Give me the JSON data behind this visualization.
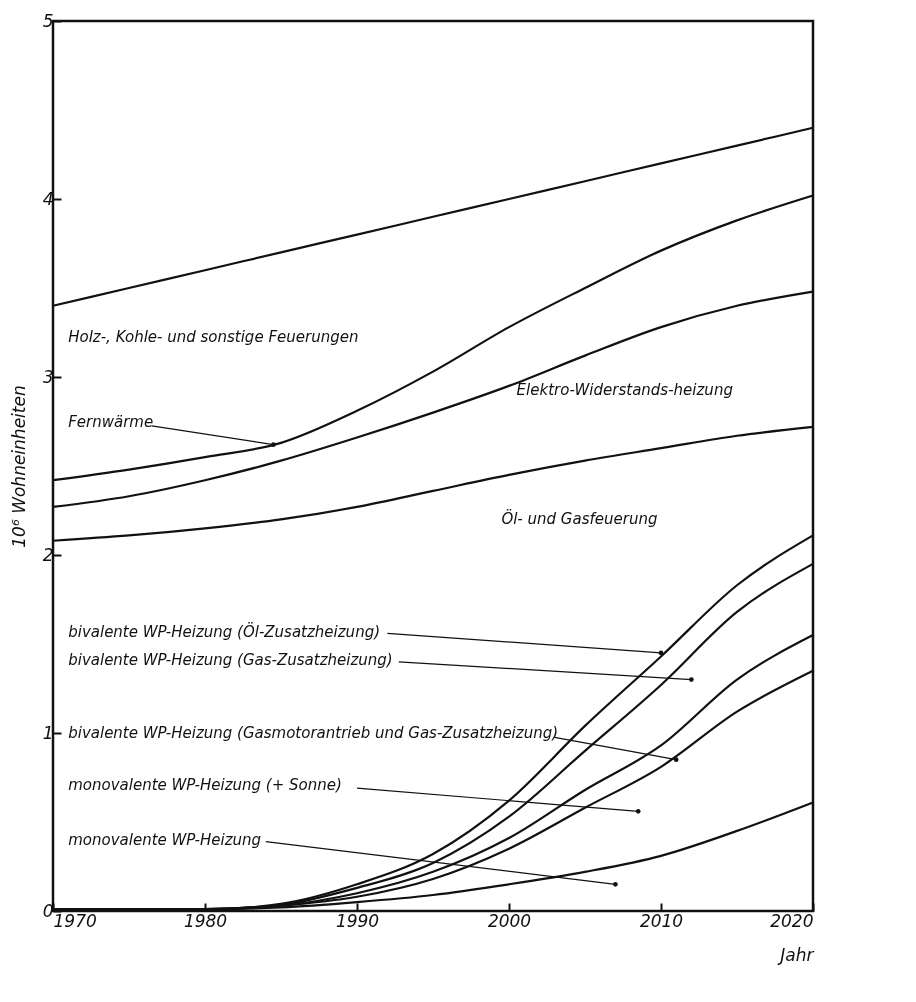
{
  "chart_data": {
    "type": "line",
    "xlabel": "Jahr",
    "ylabel": "10⁶ Wohneinheiten",
    "x": [
      1970,
      1975,
      1980,
      1985,
      1990,
      1995,
      2000,
      2005,
      2010,
      2015,
      2020
    ],
    "xlim": [
      1970,
      2020
    ],
    "xticks": [
      1970,
      1980,
      1990,
      2000,
      2010,
      2020
    ],
    "ylim": [
      0,
      5
    ],
    "yticks": [
      0,
      1,
      2,
      3,
      4,
      5
    ],
    "grid": false,
    "legend": false,
    "marker": "none",
    "line_style": "solid",
    "series": [
      {
        "color": "#111111",
        "values": [
          3.4,
          3.5,
          3.6,
          3.7,
          3.8,
          3.9,
          4.0,
          4.1,
          4.2,
          4.3,
          4.4
        ]
      },
      {
        "color": "#111111",
        "values": [
          2.42,
          2.48,
          2.55,
          2.63,
          2.81,
          3.03,
          3.28,
          3.5,
          3.71,
          3.88,
          4.02
        ]
      },
      {
        "color": "#111111",
        "values": [
          2.27,
          2.33,
          2.42,
          2.53,
          2.66,
          2.8,
          2.95,
          3.12,
          3.28,
          3.4,
          3.48
        ]
      },
      {
        "color": "#111111",
        "values": [
          2.08,
          2.11,
          2.15,
          2.2,
          2.27,
          2.36,
          2.45,
          2.53,
          2.6,
          2.67,
          2.72
        ]
      },
      {
        "color": "#111111",
        "values": [
          0.01,
          0.01,
          0.01,
          0.04,
          0.15,
          0.32,
          0.62,
          1.04,
          1.43,
          1.83,
          2.11
        ]
      },
      {
        "color": "#111111",
        "values": [
          0.01,
          0.01,
          0.01,
          0.035,
          0.13,
          0.27,
          0.53,
          0.9,
          1.27,
          1.68,
          1.95
        ]
      },
      {
        "color": "#111111",
        "values": [
          0.01,
          0.01,
          0.01,
          0.03,
          0.1,
          0.22,
          0.41,
          0.68,
          0.93,
          1.3,
          1.55
        ]
      },
      {
        "color": "#111111",
        "values": [
          0.01,
          0.01,
          0.01,
          0.03,
          0.08,
          0.18,
          0.35,
          0.58,
          0.81,
          1.12,
          1.35
        ]
      },
      {
        "color": "#111111",
        "values": [
          0.01,
          0.01,
          0.01,
          0.02,
          0.05,
          0.09,
          0.15,
          0.22,
          0.31,
          0.45,
          0.61
        ]
      }
    ],
    "annotations": [
      "Holz-, Kohle- und sonstige Feuerungen",
      "Elektro-Widerstands-heizung",
      "Öl- und Gasfeuerung",
      {
        "text": "Fernwärme",
        "x": 1984.5,
        "y": 2.62
      },
      {
        "text": "bivalente WP-Heizung (Öl-Zusatzheizung)",
        "x": 2010,
        "y": 1.45
      },
      "bivalente WP-Heizung (Gas-Zusatzheizung)",
      {
        "text": "bivalente WP-Heizung (Gasmotorantrieb und Gas-Zusatzheizung)",
        "x": 2011,
        "y": 0.85
      },
      "monovalente WP-Heizung (+ Sonne)",
      "monovalente WP-Heizung"
    ]
  }
}
